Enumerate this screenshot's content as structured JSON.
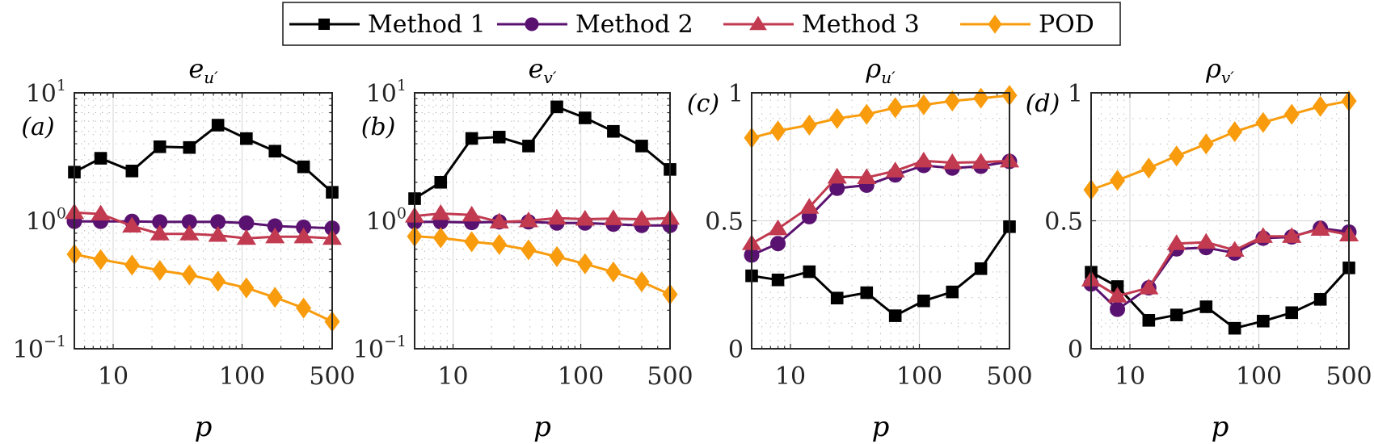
{
  "legend": {
    "placement": "top-center",
    "entries": [
      {
        "name": "Method 1",
        "color": "#000000",
        "marker": "square"
      },
      {
        "name": "Method 2",
        "color": "#5a1270",
        "marker": "circle"
      },
      {
        "name": "Method 3",
        "color": "#c13a50",
        "marker": "triangle"
      },
      {
        "name": "POD",
        "color": "#f89c0e",
        "marker": "diamond"
      }
    ]
  },
  "chart_data": [
    {
      "type": "line",
      "panel_tag": "(a)",
      "title_base": "e",
      "title_sub": "u′",
      "xlabel": "p",
      "ylabel": "",
      "xscale": "log",
      "yscale": "log",
      "xlim": [
        5,
        500
      ],
      "ylim": [
        0.1,
        10
      ],
      "xticks": [
        10,
        100,
        500
      ],
      "xtick_labels": [
        "10",
        "100",
        "500"
      ],
      "yticks": [
        0.1,
        1,
        10
      ],
      "ytick_labels": [
        {
          "base": "10",
          "exp": "−1"
        },
        {
          "base": "10",
          "exp": "0"
        },
        {
          "base": "10",
          "exp": "1"
        }
      ],
      "grid": true,
      "x": [
        5,
        8,
        14,
        23,
        39,
        65,
        108,
        180,
        300,
        500
      ],
      "series": [
        {
          "name": "Method 1",
          "values": [
            2.4,
            3.08,
            2.45,
            3.79,
            3.74,
            5.59,
            4.39,
            3.5,
            2.64,
            1.67
          ]
        },
        {
          "name": "Method 2",
          "values": [
            0.99,
            0.99,
            0.99,
            0.98,
            0.98,
            0.98,
            0.96,
            0.91,
            0.89,
            0.875
          ]
        },
        {
          "name": "Method 3",
          "values": [
            1.16,
            1.13,
            0.91,
            0.79,
            0.79,
            0.77,
            0.73,
            0.75,
            0.75,
            0.73
          ]
        },
        {
          "name": "POD",
          "values": [
            0.547,
            0.497,
            0.451,
            0.409,
            0.377,
            0.337,
            0.299,
            0.252,
            0.208,
            0.163
          ]
        }
      ]
    },
    {
      "type": "line",
      "panel_tag": "(b)",
      "title_base": "e",
      "title_sub": "v′",
      "xlabel": "p",
      "ylabel": "",
      "xscale": "log",
      "yscale": "log",
      "xlim": [
        5,
        500
      ],
      "ylim": [
        0.1,
        10
      ],
      "xticks": [
        10,
        100,
        500
      ],
      "xtick_labels": [
        "10",
        "100",
        "500"
      ],
      "yticks": [
        0.1,
        1,
        10
      ],
      "ytick_labels": [
        {
          "base": "10",
          "exp": "−1"
        },
        {
          "base": "10",
          "exp": "0"
        },
        {
          "base": "10",
          "exp": "1"
        }
      ],
      "grid": true,
      "x": [
        5,
        8,
        14,
        23,
        39,
        65,
        108,
        180,
        300,
        500
      ],
      "series": [
        {
          "name": "Method 1",
          "values": [
            1.49,
            2.0,
            4.4,
            4.51,
            3.84,
            7.77,
            6.37,
            5.0,
            3.84,
            2.52
          ]
        },
        {
          "name": "Method 2",
          "values": [
            0.98,
            0.98,
            0.97,
            0.98,
            0.98,
            0.96,
            0.96,
            0.94,
            0.92,
            0.92
          ]
        },
        {
          "name": "Method 3",
          "values": [
            1.09,
            1.14,
            1.11,
            0.98,
            1.0,
            1.05,
            1.03,
            1.04,
            1.03,
            1.05
          ]
        },
        {
          "name": "POD",
          "values": [
            0.755,
            0.736,
            0.685,
            0.653,
            0.593,
            0.525,
            0.461,
            0.398,
            0.334,
            0.266
          ]
        }
      ]
    },
    {
      "type": "line",
      "panel_tag": "(c)",
      "title_base": "ρ",
      "title_sub": "u′",
      "xlabel": "p",
      "ylabel": "",
      "xscale": "log",
      "yscale": "linear",
      "xlim": [
        5,
        500
      ],
      "ylim": [
        0,
        1
      ],
      "xticks": [
        10,
        100,
        500
      ],
      "xtick_labels": [
        "10",
        "100",
        "500"
      ],
      "yticks": [
        0,
        0.5,
        1
      ],
      "ytick_labels": [
        {
          "base": "0",
          "exp": ""
        },
        {
          "base": "0.5",
          "exp": ""
        },
        {
          "base": "1",
          "exp": ""
        }
      ],
      "grid": true,
      "x": [
        5,
        8,
        14,
        23,
        39,
        65,
        108,
        180,
        300,
        500
      ],
      "series": [
        {
          "name": "Method 1",
          "values": [
            0.285,
            0.269,
            0.301,
            0.198,
            0.219,
            0.129,
            0.187,
            0.222,
            0.313,
            0.477
          ]
        },
        {
          "name": "Method 2",
          "values": [
            0.366,
            0.411,
            0.516,
            0.627,
            0.639,
            0.679,
            0.716,
            0.706,
            0.713,
            0.732
          ]
        },
        {
          "name": "Method 3",
          "values": [
            0.411,
            0.469,
            0.553,
            0.671,
            0.669,
            0.695,
            0.734,
            0.727,
            0.729,
            0.734
          ]
        },
        {
          "name": "POD",
          "values": [
            0.824,
            0.851,
            0.874,
            0.9,
            0.916,
            0.942,
            0.953,
            0.968,
            0.979,
            0.99
          ]
        }
      ]
    },
    {
      "type": "line",
      "panel_tag": "(d)",
      "title_base": "ρ",
      "title_sub": "v′",
      "xlabel": "p",
      "ylabel": "",
      "xscale": "log",
      "yscale": "linear",
      "xlim": [
        5,
        500
      ],
      "ylim": [
        0,
        1
      ],
      "xticks": [
        10,
        100,
        500
      ],
      "xtick_labels": [
        "10",
        "100",
        "500"
      ],
      "yticks": [
        0,
        0.5,
        1
      ],
      "ytick_labels": [
        {
          "base": "0",
          "exp": ""
        },
        {
          "base": "0.5",
          "exp": ""
        },
        {
          "base": "1",
          "exp": ""
        }
      ],
      "grid": true,
      "x": [
        5,
        8,
        14,
        23,
        39,
        65,
        108,
        180,
        300,
        500
      ],
      "series": [
        {
          "name": "Method 1",
          "values": [
            0.299,
            0.243,
            0.111,
            0.132,
            0.164,
            0.08,
            0.108,
            0.141,
            0.193,
            0.316
          ]
        },
        {
          "name": "Method 2",
          "values": [
            0.253,
            0.154,
            0.238,
            0.39,
            0.395,
            0.374,
            0.432,
            0.437,
            0.471,
            0.456
          ]
        },
        {
          "name": "Method 3",
          "values": [
            0.269,
            0.206,
            0.238,
            0.411,
            0.416,
            0.385,
            0.439,
            0.439,
            0.467,
            0.445
          ]
        },
        {
          "name": "POD",
          "values": [
            0.621,
            0.658,
            0.706,
            0.753,
            0.8,
            0.848,
            0.884,
            0.916,
            0.947,
            0.968
          ]
        }
      ]
    }
  ]
}
